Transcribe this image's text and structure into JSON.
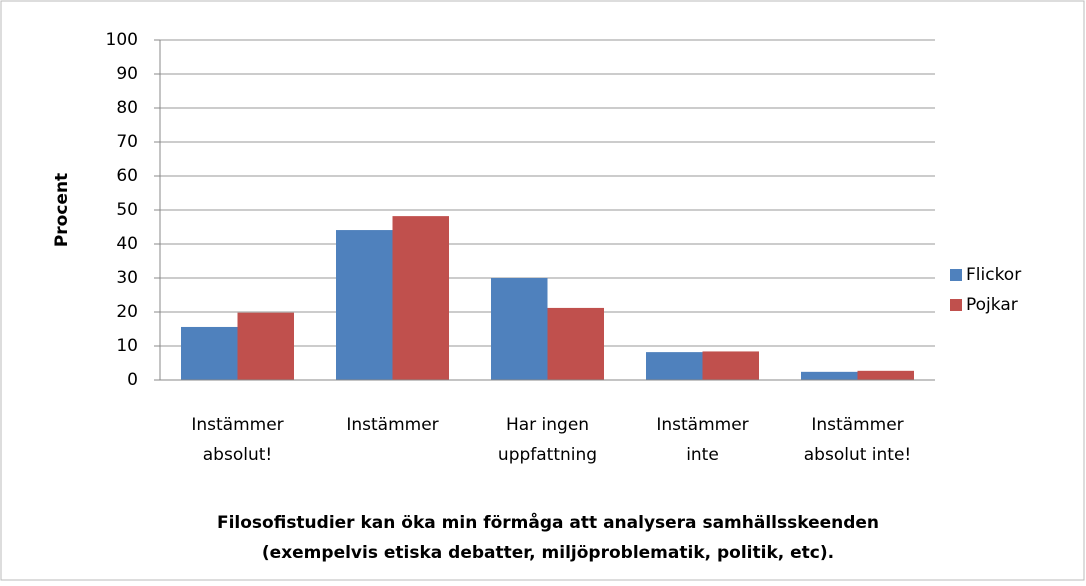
{
  "chart_data": {
    "type": "bar",
    "ylabel": "Procent",
    "xlabel": [
      "Filosofistudier kan öka min förmåga att analysera samhällsskeenden",
      "(exempelvis etiska debatter, miljöproblematik, politik, etc)."
    ],
    "categories": [
      [
        "Instämmer",
        "absolut!"
      ],
      [
        "Instämmer"
      ],
      [
        "Har ingen",
        "uppfattning"
      ],
      [
        "Instämmer",
        "inte"
      ],
      [
        "Instämmer",
        "absolut inte!"
      ]
    ],
    "series": [
      {
        "name": "Flickor",
        "color": "#4f81bd",
        "values": [
          15.6,
          44.1,
          30,
          8.2,
          2.4
        ]
      },
      {
        "name": "Pojkar",
        "color": "#c0504d",
        "values": [
          19.8,
          48.2,
          21.2,
          8.4,
          2.7
        ]
      }
    ],
    "ylim": [
      0,
      100
    ],
    "yticks": [
      0,
      10,
      20,
      30,
      40,
      50,
      60,
      70,
      80,
      90,
      100
    ],
    "grid": true,
    "legend": "right"
  }
}
